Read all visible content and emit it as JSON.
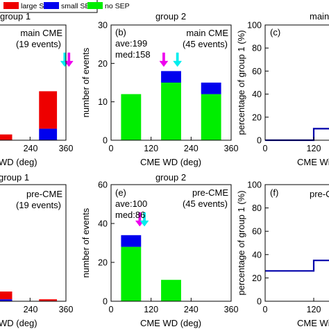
{
  "colors": {
    "large_sep": "#ee0000",
    "small_sep": "#0000ee",
    "no_sep": "#00ee00",
    "line": "#0000aa",
    "arrow_magenta": "#ee00ee",
    "arrow_cyan": "#00eeee"
  },
  "legend": [
    {
      "label": "large SEP",
      "color": "#ee0000"
    },
    {
      "label": "small SEP",
      "color": "#0000ee"
    },
    {
      "label": "no SEP",
      "color": "#00ee00"
    }
  ],
  "chart_data": [
    {
      "type": "bar",
      "stacked": true,
      "title": "group 1",
      "xlabel": "WD (deg)",
      "ylabel": "",
      "xlim": [
        0,
        360
      ],
      "ylim": [
        0,
        40
      ],
      "xticks": [
        "240",
        "360"
      ],
      "yticks": [],
      "bin_edges": [
        [
          120,
          180
        ],
        [
          270,
          330
        ]
      ],
      "series": [
        {
          "name": "no SEP",
          "values": [
            0,
            0
          ]
        },
        {
          "name": "small SEP",
          "values": [
            0,
            4
          ]
        },
        {
          "name": "large SEP",
          "values": [
            2,
            13
          ]
        }
      ],
      "annotations": [
        "main CME",
        "(19 events)"
      ],
      "arrows": [
        {
          "x": 356,
          "color": "cyan"
        },
        {
          "x": 370,
          "color": "magenta"
        }
      ]
    },
    {
      "type": "bar",
      "stacked": true,
      "panel": "(b)",
      "title": "group 2",
      "xlabel": "CME WD (deg)",
      "ylabel": "number of events",
      "xlim": [
        0,
        360
      ],
      "ylim": [
        0,
        30
      ],
      "xticks": [
        "0",
        "120",
        "240",
        "360"
      ],
      "yticks": [
        "0",
        "10",
        "20",
        "30"
      ],
      "bin_edges": [
        [
          30,
          90
        ],
        [
          150,
          210
        ],
        [
          270,
          330
        ]
      ],
      "series": [
        {
          "name": "no SEP",
          "values": [
            12,
            15,
            12
          ]
        },
        {
          "name": "small SEP",
          "values": [
            0,
            3,
            3
          ]
        },
        {
          "name": "large SEP",
          "values": [
            0,
            0,
            0
          ]
        }
      ],
      "annotations": [
        "main CME",
        "(45 events)",
        "ave:199",
        "med:158"
      ],
      "arrows": [
        {
          "x": 158,
          "color": "magenta"
        },
        {
          "x": 199,
          "color": "cyan"
        }
      ]
    },
    {
      "type": "line",
      "panel": "(c)",
      "title": "main",
      "xlabel": "CME Wi",
      "ylabel": "percentage of group 1 (%)",
      "xlim": [
        0,
        360
      ],
      "ylim": [
        0,
        100
      ],
      "xticks": [
        "0",
        "120"
      ],
      "yticks": [
        "0",
        "20",
        "40",
        "60",
        "80",
        "100"
      ],
      "steps": [
        [
          0,
          120,
          0
        ],
        [
          120,
          180,
          10
        ]
      ]
    },
    {
      "type": "bar",
      "stacked": true,
      "title": "group 1",
      "xlabel": "WD (deg)",
      "ylabel": "",
      "xlim": [
        0,
        360
      ],
      "ylim": [
        0,
        60
      ],
      "xticks": [
        "240",
        "360"
      ],
      "yticks": [],
      "bin_edges": [
        [
          120,
          180
        ],
        [
          270,
          330
        ]
      ],
      "series": [
        {
          "name": "no SEP",
          "values": [
            0,
            0
          ]
        },
        {
          "name": "small SEP",
          "values": [
            1,
            0
          ]
        },
        {
          "name": "large SEP",
          "values": [
            4,
            1
          ]
        }
      ],
      "annotations": [
        "pre-CME",
        "(19 events)"
      ]
    },
    {
      "type": "bar",
      "stacked": true,
      "panel": "(e)",
      "title": "group 2",
      "xlabel": "CME WD (deg)",
      "ylabel": "number of events",
      "xlim": [
        0,
        360
      ],
      "ylim": [
        0,
        60
      ],
      "xticks": [
        "0",
        "120",
        "240",
        "360"
      ],
      "yticks": [
        "0",
        "20",
        "40",
        "60"
      ],
      "bin_edges": [
        [
          30,
          90
        ],
        [
          150,
          210
        ],
        [
          270,
          330
        ]
      ],
      "series": [
        {
          "name": "no SEP",
          "values": [
            28,
            11,
            0
          ]
        },
        {
          "name": "small SEP",
          "values": [
            6,
            0,
            0
          ]
        },
        {
          "name": "large SEP",
          "values": [
            0,
            0,
            0
          ]
        }
      ],
      "annotations": [
        "pre-CME",
        "(45 events)",
        "ave:100",
        "med:86"
      ],
      "arrows": [
        {
          "x": 86,
          "color": "magenta"
        },
        {
          "x": 100,
          "color": "cyan"
        }
      ]
    },
    {
      "type": "line",
      "panel": "(f)",
      "title": "pre-C",
      "xlabel": "CME Wi",
      "ylabel": "percentage of group 1 (%)",
      "xlim": [
        0,
        360
      ],
      "ylim": [
        0,
        100
      ],
      "xticks": [
        "0",
        "120"
      ],
      "yticks": [
        "0",
        "20",
        "40",
        "60",
        "80",
        "100"
      ],
      "steps": [
        [
          0,
          120,
          26
        ],
        [
          120,
          180,
          35
        ]
      ]
    }
  ]
}
